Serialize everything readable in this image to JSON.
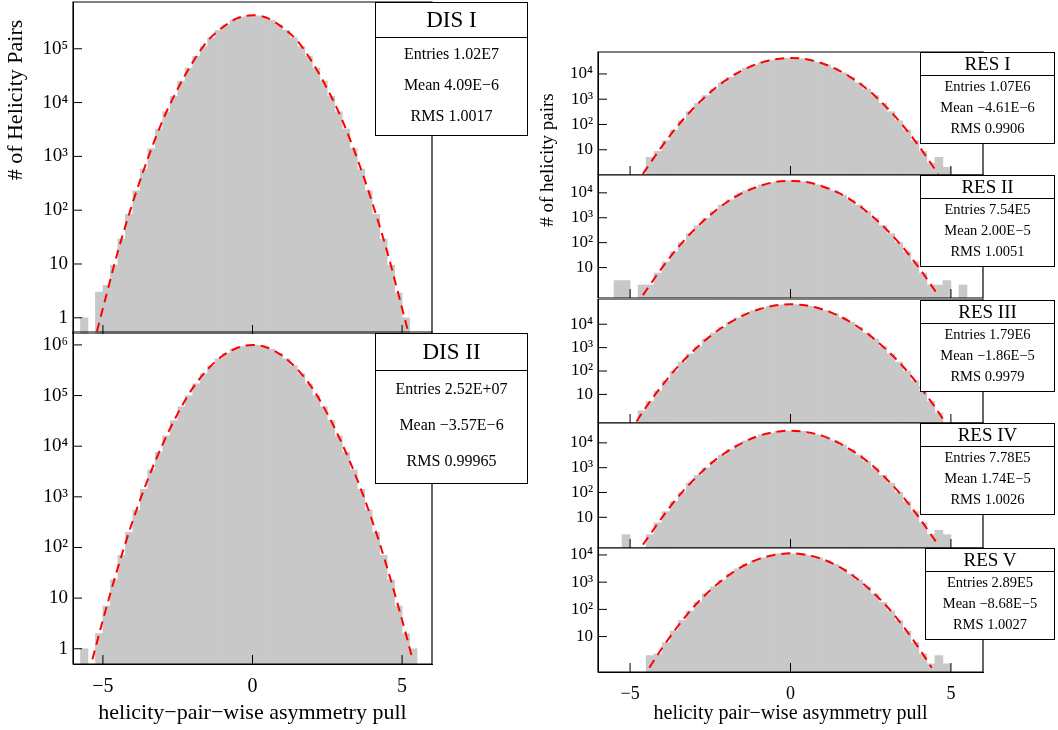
{
  "chart_data": [
    {
      "type": "histogram",
      "title": "DIS I",
      "ylabel": "# of Helicity Pairs",
      "log": true,
      "marker": "none",
      "tick_labels": "y",
      "annotations": [
        "Entries 1.02E7",
        "Mean 4.09E−6",
        "RMS 1.0017"
      ],
      "xlim": [
        -6,
        6
      ],
      "xticks": [
        -5,
        0,
        5
      ],
      "ylim": [
        0.5,
        740000
      ],
      "yticks": [
        {
          "value": 1,
          "label": "1"
        },
        {
          "value": 10,
          "label": "10"
        },
        {
          "value": 100,
          "label": "10²"
        },
        {
          "value": 1000,
          "label": "10³"
        },
        {
          "value": 10000,
          "label": "10⁴"
        },
        {
          "value": 100000,
          "label": "10⁵"
        }
      ],
      "bins": [
        -6,
        -5.75,
        -5.5,
        -5.25,
        -5,
        -4.75,
        -4.5,
        -4.25,
        -4,
        -3.75,
        -3.5,
        -3.25,
        -3,
        -2.75,
        -2.5,
        -2.25,
        -2,
        -1.75,
        -1.5,
        -1.25,
        -1,
        -0.75,
        -0.5,
        -0.25,
        0,
        0.25,
        0.5,
        0.75,
        1,
        1.25,
        1.5,
        1.75,
        2,
        2.25,
        2.5,
        2.75,
        3,
        3.25,
        3.5,
        3.75,
        4,
        4.25,
        4.5,
        4.75,
        5,
        5.25,
        5.5,
        5.75,
        6
      ],
      "series": [
        {
          "type": "histogram",
          "color": "#c8c8c8",
          "values": [
            null,
            1,
            null,
            3,
            4,
            9.5,
            29,
            84,
            230,
            580,
            1400,
            3200,
            6700,
            13000,
            25000,
            44000,
            72000,
            110000,
            160000,
            220000,
            280000,
            340000,
            390000,
            410000,
            410000,
            390000,
            340000,
            280000,
            220000,
            160000,
            110000,
            72000,
            44000,
            25000,
            13000,
            6700,
            3200,
            1400,
            580,
            230,
            84,
            29,
            9.5,
            2.9,
            1,
            null,
            null,
            null
          ]
        },
        {
          "type": "line",
          "color": "#ff0000",
          "line_style": "dashed",
          "x": [
            -5.2,
            -5,
            -4.5,
            -4,
            -3.5,
            -3,
            -2.5,
            -2,
            -1.5,
            -1,
            -0.5,
            0,
            0.5,
            1,
            1.5,
            2,
            2.5,
            3,
            3.5,
            4,
            4.5,
            5,
            5.2
          ],
          "values": [
            0.56,
            1.5,
            17,
            140,
            910,
            4700,
            18000,
            56000,
            140000,
            250000,
            370000,
            420000,
            370000,
            250000,
            140000,
            56000,
            18000,
            4700,
            910,
            140,
            17,
            1.5,
            0.56
          ]
        }
      ]
    },
    {
      "type": "histogram",
      "title": "DIS II",
      "xlabel": "helicity−pair−wise asymmetry pull",
      "log": true,
      "marker": "none",
      "annotations": [
        "Entries 2.52E+07",
        "Mean −3.57E−6",
        "RMS 0.99965"
      ],
      "xlim": [
        -6,
        6
      ],
      "xticks": [
        {
          "value": -5,
          "label": "−5"
        },
        0,
        5
      ],
      "ylim": [
        0.5,
        1800000
      ],
      "yticks": [
        {
          "value": 1,
          "label": "1"
        },
        {
          "value": 10,
          "label": "10"
        },
        {
          "value": 100,
          "label": "10²"
        },
        {
          "value": 1000,
          "label": "10³"
        },
        {
          "value": 10000,
          "label": "10⁴"
        },
        {
          "value": 100000,
          "label": "10⁵"
        },
        {
          "value": 1000000,
          "label": "10⁶"
        }
      ],
      "bins": [
        -6,
        -5.75,
        -5.5,
        -5.25,
        -5,
        -4.75,
        -4.5,
        -4.25,
        -4,
        -3.75,
        -3.5,
        -3.25,
        -3,
        -2.75,
        -2.5,
        -2.25,
        -2,
        -1.75,
        -1.5,
        -1.25,
        -1,
        -0.75,
        -0.5,
        -0.25,
        0,
        0.25,
        0.5,
        0.75,
        1,
        1.25,
        1.5,
        1.75,
        2,
        2.25,
        2.5,
        2.75,
        3,
        3.25,
        3.5,
        3.75,
        4,
        4.25,
        4.5,
        4.75,
        5,
        5.25,
        5.5,
        5.75,
        6
      ],
      "series": [
        {
          "type": "histogram",
          "color": "#c8c8c8",
          "values": [
            null,
            1,
            null,
            2,
            7,
            23,
            70,
            200,
            550,
            1400,
            3400,
            7600,
            16000,
            32000,
            60000,
            100000,
            170000,
            270000,
            390000,
            530000,
            680000,
            820000,
            930000,
            990000,
            990000,
            930000,
            820000,
            680000,
            530000,
            390000,
            270000,
            170000,
            100000,
            60000,
            32000,
            16000,
            7600,
            3400,
            1400,
            550,
            200,
            70,
            23,
            7,
            2,
            1,
            null,
            null
          ]
        },
        {
          "type": "line",
          "color": "#ff0000",
          "line_style": "dashed",
          "x": [
            -5.35,
            -5,
            -4.5,
            -4,
            -3.5,
            -3,
            -2.5,
            -2,
            -1.5,
            -1,
            -0.5,
            0,
            0.5,
            1,
            1.5,
            2,
            2.5,
            3,
            3.5,
            4,
            4.5,
            5,
            5.35
          ],
          "values": [
            0.62,
            3.7,
            40,
            340,
            2200,
            11000,
            44000,
            140000,
            330000,
            610000,
            880000,
            1000000,
            880000,
            610000,
            330000,
            140000,
            44000,
            11000,
            2200,
            340,
            40,
            3.7,
            0.62
          ]
        }
      ]
    },
    {
      "type": "histogram",
      "title": "RES I",
      "ylabel": "# of helicity pairs",
      "log": true,
      "marker": "none",
      "tick_labels": "y",
      "annotations": [
        "Entries 1.07E6",
        "Mean −4.61E−6",
        "RMS 0.9906"
      ],
      "xlim": [
        -6,
        6
      ],
      "xticks": [
        -5,
        0,
        5
      ],
      "ylim": [
        1,
        74000
      ],
      "yticks": [
        {
          "value": 10,
          "label": "10"
        },
        {
          "value": 100,
          "label": "10²"
        },
        {
          "value": 1000,
          "label": "10³"
        },
        {
          "value": 10000,
          "label": "10⁴"
        }
      ],
      "bins": [
        -6,
        -5.75,
        -5.5,
        -5.25,
        -5,
        -4.75,
        -4.5,
        -4.25,
        -4,
        -3.75,
        -3.5,
        -3.25,
        -3,
        -2.75,
        -2.5,
        -2.25,
        -2,
        -1.75,
        -1.5,
        -1.25,
        -1,
        -0.75,
        -0.5,
        -0.25,
        0,
        0.25,
        0.5,
        0.75,
        1,
        1.25,
        1.5,
        1.75,
        2,
        2.25,
        2.5,
        2.75,
        3,
        3.25,
        3.5,
        3.75,
        4,
        4.25,
        4.5,
        4.75,
        5,
        5.25,
        5.5,
        5.75,
        6
      ],
      "series": [
        {
          "type": "histogram",
          "color": "#c8c8c8",
          "values": [
            null,
            null,
            null,
            null,
            null,
            null,
            5,
            8.6,
            23,
            60,
            140,
            320,
            690,
            1400,
            2500,
            4500,
            7400,
            11000,
            17000,
            23000,
            29000,
            35000,
            40000,
            42000,
            42000,
            40000,
            35000,
            29000,
            23000,
            17000,
            11000,
            7400,
            4500,
            2500,
            1400,
            690,
            320,
            140,
            60,
            23,
            8.6,
            3,
            5,
            2,
            null,
            null,
            null,
            null
          ]
        },
        {
          "type": "line",
          "color": "#ff0000",
          "line_style": "dashed",
          "x": [
            -4.6,
            -4.5,
            -4,
            -3.5,
            -3,
            -2.5,
            -2,
            -1.5,
            -1,
            -0.5,
            0,
            0.5,
            1,
            1.5,
            2,
            2.5,
            3,
            3.5,
            4,
            4.5,
            4.6
          ],
          "values": [
            1.1,
            1.7,
            14,
            93,
            470,
            1900,
            5800,
            14000,
            26000,
            38000,
            43000,
            38000,
            26000,
            14000,
            5800,
            1900,
            470,
            93,
            14,
            1.7,
            1.1
          ]
        }
      ]
    },
    {
      "type": "histogram",
      "title": "RES II",
      "log": true,
      "marker": "none",
      "tick_labels": "y",
      "annotations": [
        "Entries 7.54E5",
        "Mean 2.00E−5",
        "RMS 1.0051"
      ],
      "xlim": [
        -6,
        6
      ],
      "xticks": [
        -5,
        0,
        5
      ],
      "ylim": [
        0.63,
        52000
      ],
      "yticks": [
        {
          "value": 10,
          "label": "10"
        },
        {
          "value": 100,
          "label": "10²"
        },
        {
          "value": 1000,
          "label": "10³"
        },
        {
          "value": 10000,
          "label": "10⁴"
        }
      ],
      "bins": [
        -6,
        -5.75,
        -5.5,
        -5.25,
        -5,
        -4.75,
        -4.5,
        -4.25,
        -4,
        -3.75,
        -3.5,
        -3.25,
        -3,
        -2.75,
        -2.5,
        -2.25,
        -2,
        -1.75,
        -1.5,
        -1.25,
        -1,
        -0.75,
        -0.5,
        -0.25,
        0,
        0.25,
        0.5,
        0.75,
        1,
        1.25,
        1.5,
        1.75,
        2,
        2.25,
        2.5,
        2.75,
        3,
        3.25,
        3.5,
        3.75,
        4,
        4.25,
        4.5,
        4.75,
        5,
        5.25,
        5.5,
        5.75,
        6
      ],
      "series": [
        {
          "type": "histogram",
          "color": "#c8c8c8",
          "values": [
            null,
            null,
            3,
            3,
            null,
            2,
            2,
            6,
            17,
            42,
            100,
            230,
            480,
            960,
            1800,
            3200,
            5200,
            8100,
            12000,
            16000,
            21000,
            25000,
            28000,
            30000,
            30000,
            28000,
            25000,
            21000,
            16000,
            12000,
            8100,
            5200,
            3200,
            1800,
            960,
            480,
            230,
            100,
            42,
            17,
            6,
            2,
            2,
            3,
            null,
            2,
            null,
            null
          ]
        },
        {
          "type": "line",
          "color": "#ff0000",
          "line_style": "dashed",
          "x": [
            -4.6,
            -4.5,
            -4,
            -3.5,
            -3,
            -2.5,
            -2,
            -1.5,
            -1,
            -0.5,
            0,
            0.5,
            1,
            1.5,
            2,
            2.5,
            3,
            3.5,
            4,
            4.5,
            4.6
          ],
          "values": [
            0.78,
            1.2,
            10,
            66,
            330,
            1300,
            4100,
            9900,
            18000,
            27000,
            30000,
            27000,
            18000,
            9900,
            4100,
            1300,
            330,
            66,
            10,
            1.2,
            0.78
          ]
        }
      ]
    },
    {
      "type": "histogram",
      "title": "RES III",
      "log": true,
      "marker": "none",
      "tick_labels": "y",
      "annotations": [
        "Entries 1.79E6",
        "Mean −1.86E−5",
        "RMS 0.9979"
      ],
      "xlim": [
        -6,
        6
      ],
      "xticks": [
        -5,
        0,
        5
      ],
      "ylim": [
        0.63,
        120000
      ],
      "yticks": [
        {
          "value": 10,
          "label": "10"
        },
        {
          "value": 100,
          "label": "10²"
        },
        {
          "value": 1000,
          "label": "10³"
        },
        {
          "value": 10000,
          "label": "10⁴"
        }
      ],
      "bins": [
        -6,
        -5.75,
        -5.5,
        -5.25,
        -5,
        -4.75,
        -4.5,
        -4.25,
        -4,
        -3.75,
        -3.5,
        -3.25,
        -3,
        -2.75,
        -2.5,
        -2.25,
        -2,
        -1.75,
        -1.5,
        -1.25,
        -1,
        -0.75,
        -0.5,
        -0.25,
        0,
        0.25,
        0.5,
        0.75,
        1,
        1.25,
        1.5,
        1.75,
        2,
        2.25,
        2.5,
        2.75,
        3,
        3.25,
        3.5,
        3.75,
        4,
        4.25,
        4.5,
        4.75,
        5,
        5.25,
        5.5,
        5.75,
        6
      ],
      "series": [
        {
          "type": "histogram",
          "color": "#c8c8c8",
          "values": [
            null,
            null,
            null,
            null,
            null,
            2,
            5,
            14,
            39,
            99,
            240,
            540,
            1100,
            2300,
            4200,
            7400,
            12000,
            19000,
            28000,
            38000,
            48000,
            58000,
            66000,
            70000,
            70000,
            66000,
            58000,
            48000,
            38000,
            28000,
            19000,
            12000,
            7400,
            4200,
            2300,
            1100,
            540,
            240,
            99,
            39,
            14,
            5,
            1.6,
            null,
            null,
            null,
            null,
            null
          ]
        },
        {
          "type": "line",
          "color": "#ff0000",
          "line_style": "dashed",
          "x": [
            -4.8,
            -4.5,
            -4,
            -3.5,
            -3,
            -2.5,
            -2,
            -1.5,
            -1,
            -0.5,
            0,
            0.5,
            1,
            1.5,
            2,
            2.5,
            3,
            3.5,
            4,
            4.5,
            4.8
          ],
          "values": [
            0.7,
            2.9,
            24,
            160,
            790,
            3100,
            9600,
            23000,
            43000,
            63000,
            71000,
            63000,
            43000,
            23000,
            9600,
            3100,
            790,
            160,
            24,
            2.9,
            0.7
          ]
        }
      ]
    },
    {
      "type": "histogram",
      "title": "RES IV",
      "log": true,
      "marker": "none",
      "tick_labels": "y",
      "annotations": [
        "Entries 7.78E5",
        "Mean 1.74E−5",
        "RMS 1.0026"
      ],
      "xlim": [
        -6,
        6
      ],
      "xticks": [
        -5,
        0,
        5
      ],
      "ylim": [
        0.58,
        63000
      ],
      "yticks": [
        {
          "value": 10,
          "label": "10"
        },
        {
          "value": 100,
          "label": "10²"
        },
        {
          "value": 1000,
          "label": "10³"
        },
        {
          "value": 10000,
          "label": "10⁴"
        }
      ],
      "bins": [
        -6,
        -5.75,
        -5.5,
        -5.25,
        -5,
        -4.75,
        -4.5,
        -4.25,
        -4,
        -3.75,
        -3.5,
        -3.25,
        -3,
        -2.75,
        -2.5,
        -2.25,
        -2,
        -1.75,
        -1.5,
        -1.25,
        -1,
        -0.75,
        -0.5,
        -0.25,
        0,
        0.25,
        0.5,
        0.75,
        1,
        1.25,
        1.5,
        1.75,
        2,
        2.25,
        2.5,
        2.75,
        3,
        3.25,
        3.5,
        3.75,
        4,
        4.25,
        4.5,
        4.75,
        5,
        5.25,
        5.5,
        5.75,
        6
      ],
      "series": [
        {
          "type": "histogram",
          "color": "#c8c8c8",
          "values": [
            null,
            null,
            null,
            2,
            null,
            null,
            2,
            6,
            17,
            43,
            100,
            240,
            490,
            980,
            1800,
            3200,
            5300,
            8300,
            12000,
            16000,
            21000,
            25000,
            29000,
            30000,
            30000,
            29000,
            25000,
            21000,
            16000,
            12000,
            8300,
            5300,
            3200,
            1800,
            980,
            490,
            240,
            100,
            43,
            17,
            6,
            2,
            3,
            2,
            null,
            null,
            null,
            null
          ]
        },
        {
          "type": "line",
          "color": "#ff0000",
          "line_style": "dashed",
          "x": [
            -4.6,
            -4.5,
            -4,
            -3.5,
            -3,
            -2.5,
            -2,
            -1.5,
            -1,
            -0.5,
            0,
            0.5,
            1,
            1.5,
            2,
            2.5,
            3,
            3.5,
            4,
            4.5,
            4.6
          ],
          "values": [
            0.79,
            1.2,
            10,
            68,
            340,
            1400,
            4200,
            10000,
            19000,
            27000,
            31000,
            27000,
            19000,
            10000,
            4200,
            1400,
            340,
            68,
            10,
            1.2,
            0.79
          ]
        }
      ]
    },
    {
      "type": "histogram",
      "title": "RES V",
      "xlabel": "helicity pair−wise asymmetry pull",
      "log": true,
      "marker": "none",
      "annotations": [
        "Entries 2.89E5",
        "Mean −8.68E−5",
        "RMS 1.0027"
      ],
      "xlim": [
        -6,
        6
      ],
      "xticks": [
        {
          "value": -5,
          "label": "−5"
        },
        0,
        5
      ],
      "ylim": [
        0.5,
        18000
      ],
      "yticks": [
        {
          "value": 10,
          "label": "10"
        },
        {
          "value": 100,
          "label": "10²"
        },
        {
          "value": 1000,
          "label": "10³"
        },
        {
          "value": 10000,
          "label": "10⁴"
        }
      ],
      "bins": [
        -6,
        -5.75,
        -5.5,
        -5.25,
        -5,
        -4.75,
        -4.5,
        -4.25,
        -4,
        -3.75,
        -3.5,
        -3.25,
        -3,
        -2.75,
        -2.5,
        -2.25,
        -2,
        -1.75,
        -1.5,
        -1.25,
        -1,
        -0.75,
        -0.5,
        -0.25,
        0,
        0.25,
        0.5,
        0.75,
        1,
        1.25,
        1.5,
        1.75,
        2,
        2.25,
        2.5,
        2.75,
        3,
        3.25,
        3.5,
        3.75,
        4,
        4.25,
        4.5,
        4.75,
        5,
        5.25,
        5.5,
        5.75,
        6
      ],
      "series": [
        {
          "type": "histogram",
          "color": "#c8c8c8",
          "values": [
            null,
            null,
            null,
            null,
            null,
            null,
            2,
            2.3,
            6,
            16,
            39,
            87,
            180,
            370,
            680,
            1200,
            2000,
            3100,
            4500,
            6100,
            7800,
            9400,
            11000,
            11000,
            11000,
            11000,
            9400,
            7800,
            6100,
            4500,
            3100,
            2000,
            1200,
            680,
            370,
            180,
            87,
            39,
            16,
            6,
            2.3,
            1,
            2,
            1,
            null,
            null,
            null,
            null
          ]
        },
        {
          "type": "line",
          "color": "#ff0000",
          "line_style": "dashed",
          "x": [
            -4.4,
            -4,
            -3.5,
            -3,
            -2.5,
            -2,
            -1.5,
            -1,
            -0.5,
            0,
            0.5,
            1,
            1.5,
            2,
            2.5,
            3,
            3.5,
            4,
            4.4
          ],
          "values": [
            0.72,
            3.8,
            25,
            130,
            500,
            1550,
            3800,
            7000,
            10000,
            11500,
            10000,
            7000,
            3800,
            1550,
            500,
            130,
            25,
            3.8,
            0.72
          ]
        }
      ]
    }
  ]
}
